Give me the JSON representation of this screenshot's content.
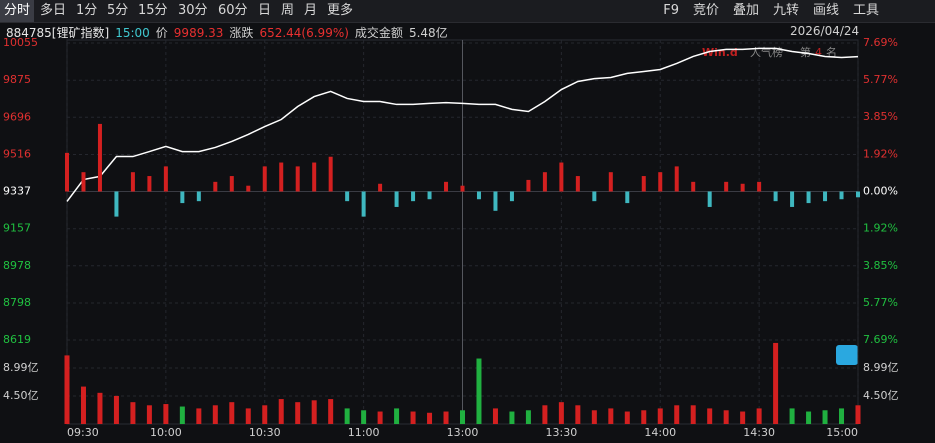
{
  "toolbar": {
    "tabs": [
      "分时",
      "多日",
      "1分",
      "5分",
      "15分",
      "30分",
      "60分",
      "日",
      "周",
      "月",
      "更多"
    ],
    "tools": [
      "F9",
      "竞价",
      "叠加",
      "九转",
      "画线",
      "工具"
    ]
  },
  "info": {
    "code": "884785[锂矿指数]",
    "time": "15:00",
    "price_label": "价",
    "price": "9989.33",
    "change_label": "涨跌",
    "change": "652.44(6.99%)",
    "amount_label": "成交金额",
    "amount": "5.48亿",
    "date": "2026/04/24"
  },
  "watermark": {
    "brand": "Win.d",
    "rank_label": "人气榜",
    "rank_prefix": "第",
    "rank": "4",
    "rank_suffix": "名"
  },
  "chart_data": [
    {
      "type": "line",
      "x": [
        "09:30",
        "09:35",
        "09:40",
        "09:45",
        "09:50",
        "09:55",
        "10:00",
        "10:05",
        "10:10",
        "10:15",
        "10:20",
        "10:25",
        "10:30",
        "10:35",
        "10:40",
        "10:45",
        "10:50",
        "10:55",
        "11:00",
        "11:05",
        "11:10",
        "11:15",
        "11:20",
        "11:25",
        "11:30",
        "13:05",
        "13:10",
        "13:15",
        "13:20",
        "13:25",
        "13:30",
        "13:35",
        "13:40",
        "13:45",
        "13:50",
        "13:55",
        "14:00",
        "14:05",
        "14:10",
        "14:15",
        "14:20",
        "14:25",
        "14:30",
        "14:35",
        "14:40",
        "14:45",
        "14:50",
        "14:55",
        "15:00"
      ],
      "series": [
        {
          "color": "#ffffff",
          "values": [
            9289,
            9395,
            9410,
            9506,
            9506,
            9530,
            9555,
            9530,
            9530,
            9550,
            9579,
            9613,
            9651,
            9685,
            9748,
            9796,
            9821,
            9787,
            9772,
            9772,
            9758,
            9758,
            9763,
            9767,
            9763,
            9758,
            9758,
            9734,
            9724,
            9772,
            9830,
            9869,
            9883,
            9888,
            9908,
            9917,
            9927,
            9956,
            9990,
            10014,
            10024,
            10024,
            10029,
            10029,
            10014,
            10004,
            9990,
            9985,
            9989
          ]
        },
        {
          "type": "bar",
          "axis": "y2",
          "colors": [
            "#d42020",
            "#3fb8c0"
          ],
          "values": [
            2.0,
            1.0,
            3.5,
            -1.3,
            1.0,
            0.8,
            1.3,
            -0.6,
            -0.5,
            0.5,
            0.8,
            0.3,
            1.3,
            1.5,
            1.3,
            1.5,
            1.8,
            -0.5,
            -1.3,
            0.4,
            -0.8,
            -0.5,
            -0.4,
            0.5,
            0.3,
            -0.4,
            -1.0,
            -0.5,
            0.6,
            1.0,
            1.5,
            0.8,
            -0.5,
            1.0,
            -0.6,
            0.8,
            1.0,
            1.3,
            0.5,
            -0.8,
            0.5,
            0.4,
            0.5,
            -0.5,
            -0.8,
            -0.6,
            -0.5,
            -0.4,
            -0.3
          ]
        }
      ],
      "ylim": [
        8619,
        10055
      ],
      "yticks": [
        10055,
        9875,
        9696,
        9516,
        9337,
        9157,
        8978,
        8798,
        8619
      ],
      "y2lim": [
        -7.69,
        7.69
      ],
      "y2ticks": [
        {
          "value": 7.69,
          "label": "7.69%"
        },
        {
          "value": 5.77,
          "label": "5.77%"
        },
        {
          "value": 3.85,
          "label": "3.85%"
        },
        {
          "value": 1.92,
          "label": "1.92%"
        },
        {
          "value": 0,
          "label": "0.00%"
        },
        {
          "value": -1.92,
          "label": "1.92%"
        },
        {
          "value": -3.85,
          "label": "3.85%"
        },
        {
          "value": -5.77,
          "label": "5.77%"
        },
        {
          "value": -7.69,
          "label": "7.69%"
        }
      ],
      "tick_colors": [
        "#e03030",
        "#ffffff",
        "#20c040"
      ],
      "grid": true
    },
    {
      "type": "bar",
      "x": [
        "09:30",
        "09:35",
        "09:40",
        "09:45",
        "09:50",
        "09:55",
        "10:00",
        "10:05",
        "10:10",
        "10:15",
        "10:20",
        "10:25",
        "10:30",
        "10:35",
        "10:40",
        "10:45",
        "10:50",
        "10:55",
        "11:00",
        "11:05",
        "11:10",
        "11:15",
        "11:20",
        "11:25",
        "11:30",
        "13:05",
        "13:10",
        "13:15",
        "13:20",
        "13:25",
        "13:30",
        "13:35",
        "13:40",
        "13:45",
        "13:50",
        "13:55",
        "14:00",
        "14:05",
        "14:10",
        "14:15",
        "14:20",
        "14:25",
        "14:30",
        "14:35",
        "14:40",
        "14:45",
        "14:50",
        "14:55",
        "15:00"
      ],
      "values": [
        11,
        6,
        5,
        4.5,
        3.5,
        3,
        3.2,
        2.8,
        2.5,
        3,
        3.5,
        2.5,
        3,
        4,
        3.5,
        3.8,
        4,
        2.5,
        2.2,
        2,
        2.5,
        2,
        1.8,
        2,
        2.2,
        10.5,
        2.5,
        2,
        2.2,
        3,
        3.5,
        3,
        2.2,
        2.5,
        2,
        2.2,
        2.5,
        3,
        3,
        2.5,
        2.2,
        2,
        2.5,
        13,
        2.5,
        2,
        2.2,
        2.5,
        3
      ],
      "colors": [
        "#d42020",
        "#20b040"
      ],
      "ylim": [
        0,
        13.47
      ],
      "yticks": [
        {
          "value": 8.99,
          "label": "8.99亿"
        },
        {
          "value": 4.5,
          "label": "4.50亿"
        }
      ],
      "xticks": [
        "09:30",
        "10:00",
        "10:30",
        "11:00",
        "13:00",
        "13:30",
        "14:00",
        "14:30",
        "15:00"
      ],
      "grid": true
    }
  ]
}
